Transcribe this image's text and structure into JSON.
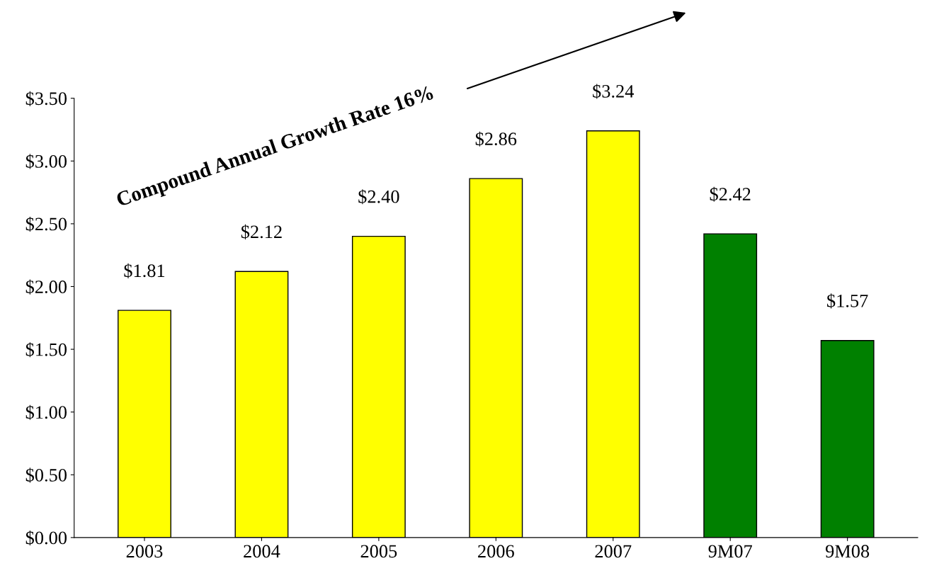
{
  "chart_data": {
    "type": "bar",
    "categories": [
      "2003",
      "2004",
      "2005",
      "2006",
      "2007",
      "9M07",
      "9M08"
    ],
    "values": [
      1.81,
      2.12,
      2.4,
      2.86,
      3.24,
      2.42,
      1.57
    ],
    "colors": [
      "#ffff00",
      "#ffff00",
      "#ffff00",
      "#ffff00",
      "#ffff00",
      "#008000",
      "#008000"
    ],
    "value_labels": [
      "$1.81",
      "$2.12",
      "$2.40",
      "$2.86",
      "$3.24",
      "$2.42",
      "$1.57"
    ],
    "ylim": [
      0,
      3.5
    ],
    "yticks": [
      {
        "value": 0,
        "label": "$0.00"
      },
      {
        "value": 0.5,
        "label": "$0.50"
      },
      {
        "value": 1.0,
        "label": "$1.00"
      },
      {
        "value": 1.5,
        "label": "$1.50"
      },
      {
        "value": 2.0,
        "label": "$2.00"
      },
      {
        "value": 2.5,
        "label": "$2.50"
      },
      {
        "value": 3.0,
        "label": "$3.00"
      },
      {
        "value": 3.5,
        "label": "$3.50"
      }
    ],
    "annotations": [
      "Compound Annual Growth Rate 16%"
    ],
    "grid": false
  }
}
